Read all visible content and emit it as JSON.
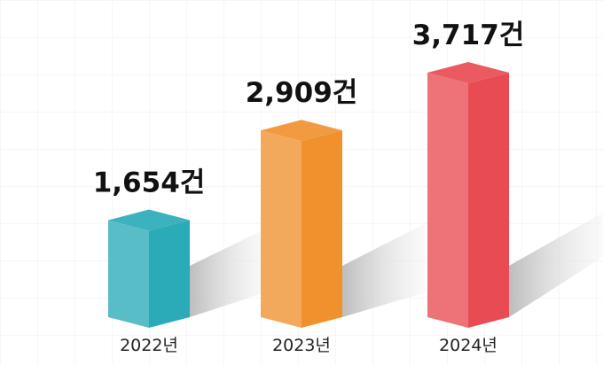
{
  "chart_data": {
    "type": "bar3d",
    "categories": [
      "2022년",
      "2023년",
      "2024년"
    ],
    "values": [
      1654,
      2909,
      3717
    ],
    "value_labels": [
      "1,654건",
      "2,909건",
      "3,717건"
    ],
    "colors": [
      "#2aabb7",
      "#f0912e",
      "#e84c52"
    ]
  }
}
